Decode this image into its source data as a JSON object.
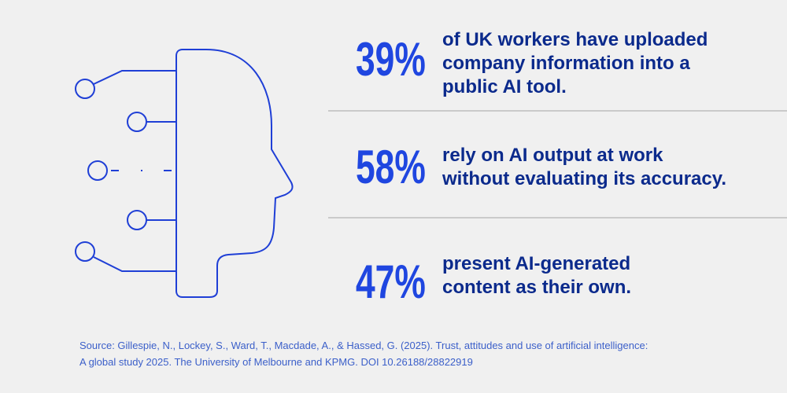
{
  "stats": [
    {
      "figure": "39%",
      "lines": [
        "of UK workers have uploaded",
        "company information into a",
        "public AI tool."
      ]
    },
    {
      "figure": "58%",
      "lines": [
        "rely on AI output at work",
        "without evaluating its accuracy."
      ]
    },
    {
      "figure": "47%",
      "lines": [
        "present AI-generated",
        "content as their own."
      ]
    }
  ],
  "source": {
    "lines": [
      "Source: Gillespie, N., Lockey, S., Ward, T., Macdade, A., & Hassed, G. (2025). Trust, attitudes and use of artificial intelligence:",
      "A global study 2025. The University of Melbourne and KPMG. DOI 10.26188/28822919"
    ]
  }
}
